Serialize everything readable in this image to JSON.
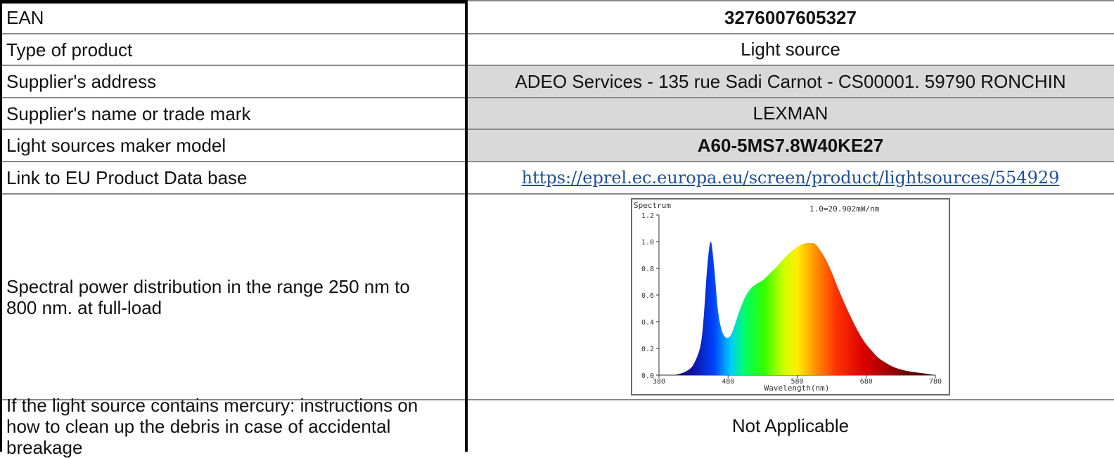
{
  "rows": {
    "ean": {
      "label": "EAN",
      "value": "3276007605327"
    },
    "type": {
      "label": "Type of product",
      "value": "Light source"
    },
    "address": {
      "label": "Supplier's address",
      "value": "ADEO Services - 135 rue Sadi Carnot - CS00001. 59790 RONCHIN"
    },
    "name": {
      "label": "Supplier's name or trade mark",
      "value": "LEXMAN"
    },
    "model": {
      "label": "Light sources maker model",
      "value": "A60-5MS7.8W40KE27"
    },
    "link": {
      "label": "Link to EU Product Data base",
      "value": "https://eprel.ec.europa.eu/screen/product/lightsources/554929"
    },
    "spectrum": {
      "label": "Spectral power distribution in the range 250 nm to 800 nm. at full-load"
    },
    "mercury": {
      "label": "If the light source contains mercury: instructions on how to clean up the debris in case of accidental breakage",
      "value": "Not Applicable"
    }
  },
  "chart_data": {
    "type": "area",
    "title": "Spectrum",
    "annotation": "1.0=20.902mW/nm",
    "xlabel": "Wavelength(nm)",
    "ylabel": "",
    "xlim": [
      380,
      780
    ],
    "ylim": [
      0,
      1.2
    ],
    "x_ticks": [
      "380",
      "480",
      "580",
      "680",
      "780"
    ],
    "y_ticks": [
      "0.0",
      "0.2",
      "0.4",
      "0.6",
      "0.8",
      "1.0",
      "1.2"
    ],
    "grid": false,
    "series": [
      {
        "x": [
          380,
          400,
          410,
          420,
          430,
          440,
          445,
          450,
          455,
          460,
          465,
          470,
          475,
          480,
          485,
          490,
          500,
          510,
          520,
          530,
          540,
          550,
          560,
          570,
          580,
          590,
          600,
          605,
          610,
          620,
          630,
          640,
          650,
          660,
          670,
          680,
          690,
          700,
          720,
          740,
          760,
          780
        ],
        "values": [
          0.0,
          0.0,
          0.01,
          0.03,
          0.08,
          0.22,
          0.45,
          0.82,
          1.0,
          0.8,
          0.5,
          0.35,
          0.29,
          0.28,
          0.31,
          0.38,
          0.53,
          0.63,
          0.68,
          0.71,
          0.76,
          0.81,
          0.87,
          0.92,
          0.96,
          0.985,
          0.99,
          0.985,
          0.96,
          0.88,
          0.77,
          0.64,
          0.52,
          0.41,
          0.31,
          0.23,
          0.17,
          0.12,
          0.06,
          0.03,
          0.015,
          0.0
        ]
      }
    ]
  }
}
